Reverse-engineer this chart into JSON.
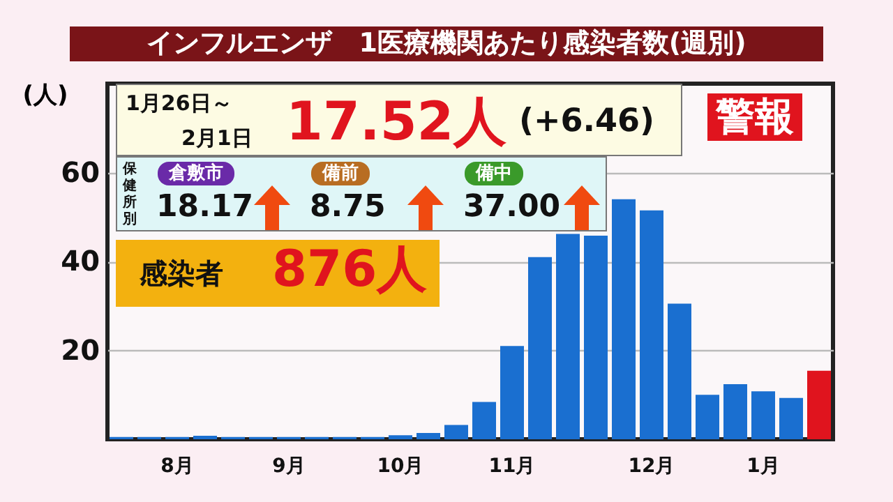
{
  "chart_data": {
    "type": "bar",
    "title": "インフルエンザ　1医療機関あたり感染者数(週別)",
    "ylabel": "(人)",
    "categories": [
      null,
      null,
      "8月",
      null,
      null,
      null,
      "9月",
      null,
      null,
      null,
      "10月",
      null,
      null,
      null,
      "11月",
      null,
      null,
      null,
      null,
      "12月",
      null,
      null,
      null,
      "1月",
      null,
      null
    ],
    "values": [
      0.5,
      0.5,
      0.5,
      0.8,
      0.5,
      0.5,
      0.5,
      0.5,
      0.5,
      0.5,
      0.9,
      1.4,
      3.2,
      8.4,
      21,
      41,
      46.2,
      45.8,
      54,
      51.5,
      30.5,
      10,
      12.4,
      10.8,
      9.3,
      15.4
    ],
    "colors": [
      "#1a6fd0",
      "#1a6fd0",
      "#1a6fd0",
      "#1a6fd0",
      "#1a6fd0",
      "#1a6fd0",
      "#1a6fd0",
      "#1a6fd0",
      "#1a6fd0",
      "#1a6fd0",
      "#1a6fd0",
      "#1a6fd0",
      "#1a6fd0",
      "#1a6fd0",
      "#1a6fd0",
      "#1a6fd0",
      "#1a6fd0",
      "#1a6fd0",
      "#1a6fd0",
      "#1a6fd0",
      "#1a6fd0",
      "#1a6fd0",
      "#1a6fd0",
      "#1a6fd0",
      "#1a6fd0",
      "#e0141e"
    ],
    "ylim": [
      0,
      80
    ],
    "yticks": [
      20,
      40,
      60
    ],
    "grid": "y",
    "legend": false,
    "annotations": [
      "1月26日～",
      "2月1日",
      "17.52人",
      "(+6.46)",
      "警報",
      "保健所別",
      "倉敷市",
      "18.17",
      "備前",
      "8.75",
      "備中",
      "37.00",
      "感染者",
      "876人"
    ]
  }
}
